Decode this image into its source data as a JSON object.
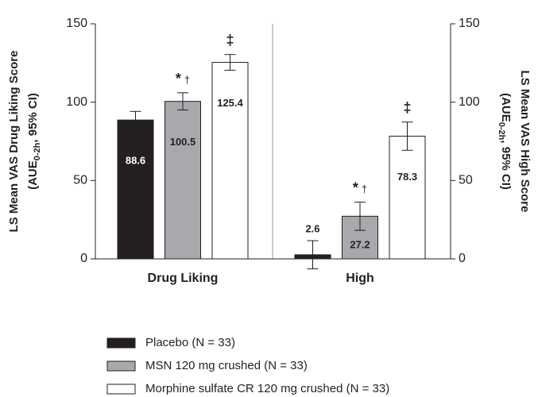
{
  "chart_data": {
    "type": "bar",
    "categories": [
      "Drug Liking",
      "High"
    ],
    "category_axis": [
      "y",
      "y2"
    ],
    "ylabel": {
      "line1": "LS Mean VAS Drug Liking Score",
      "line2_pre": "(AUE",
      "line2_sub": "0-2h",
      "line2_post": ", 95% CI)"
    },
    "y2label": {
      "line1": "LS Mean VAS High Score",
      "line2_pre": "(AUE",
      "line2_sub": "0-2h",
      "line2_post": ", 95% CI)"
    },
    "ylim": [
      0,
      150
    ],
    "yticks": [
      0,
      50,
      100,
      150
    ],
    "y2lim": [
      0,
      150
    ],
    "y2ticks": [
      0,
      50,
      100,
      150
    ],
    "series": [
      {
        "name": "Placebo (N = 33)",
        "color": "#231f20",
        "label_color": "#ffffff",
        "values": [
          88.6,
          2.6
        ],
        "errors": [
          5.5,
          9
        ]
      },
      {
        "name": "MSN 120 mg crushed (N = 33)",
        "color": "#a7a9ac",
        "label_color": "#231f20",
        "values": [
          100.5,
          27.2
        ],
        "errors": [
          5.5,
          9
        ],
        "annotations": [
          [
            "*",
            "†"
          ],
          [
            "*",
            "†"
          ]
        ]
      },
      {
        "name": "Morphine sulfate CR 120 mg crushed (N = 33)",
        "color": "#ffffff",
        "label_color": "#231f20",
        "values": [
          125.4,
          78.3
        ],
        "errors": [
          5,
          9
        ],
        "annotations": [
          [
            "‡"
          ],
          [
            "‡"
          ]
        ]
      }
    ]
  }
}
